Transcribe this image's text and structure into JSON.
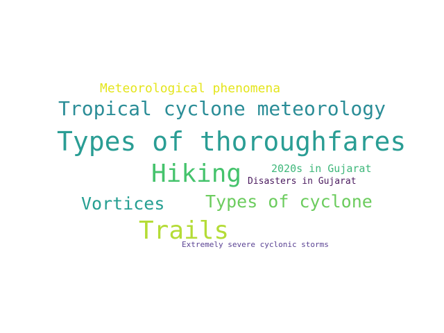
{
  "words": [
    {
      "text": "Types of thoroughfares",
      "color": "#2a9d94"
    },
    {
      "text": "Tropical cyclone meteorology",
      "color": "#2b8d97"
    },
    {
      "text": "Hiking",
      "color": "#45c36c"
    },
    {
      "text": "Trails",
      "color": "#b4dc36"
    },
    {
      "text": "Vortices",
      "color": "#269f92"
    },
    {
      "text": "Types of cyclone",
      "color": "#6ccc5e"
    },
    {
      "text": "Meteorological phenomena",
      "color": "#e4e51d"
    },
    {
      "text": "2020s in Gujarat",
      "color": "#3eb77a"
    },
    {
      "text": "Disasters in Gujarat",
      "color": "#4a1a5e"
    },
    {
      "text": "Extremely severe cyclonic storms",
      "color": "#5a4293"
    }
  ]
}
